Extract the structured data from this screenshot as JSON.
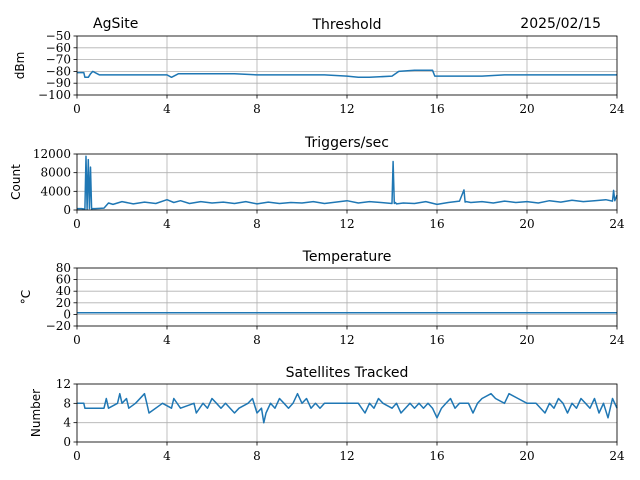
{
  "header": {
    "site": "AgSite",
    "date": "2025/02/15"
  },
  "chart_data": [
    {
      "type": "line",
      "title": "Threshold",
      "ylabel": "dBm",
      "xlabel": "",
      "xlim": [
        0,
        24
      ],
      "ylim": [
        -100,
        -50
      ],
      "xticks": [
        0,
        4,
        8,
        12,
        16,
        20,
        24
      ],
      "yticks": [
        -100,
        -90,
        -80,
        -70,
        -60,
        -50
      ],
      "ytick_labels": [
        "−100",
        "−90",
        "−80",
        "−70",
        "−60",
        "−50"
      ],
      "grid": true,
      "series": [
        {
          "x": [
            0,
            0.3,
            0.35,
            0.5,
            0.6,
            0.7,
            0.8,
            1.0,
            2,
            3,
            4,
            4.2,
            4.5,
            5,
            6,
            7,
            8,
            9,
            10,
            11,
            12,
            12.5,
            13,
            14,
            14.3,
            15,
            15.8,
            15.9,
            16.5,
            17,
            18,
            19,
            20,
            21,
            22,
            23,
            24
          ],
          "y": [
            -81,
            -81,
            -85,
            -85,
            -82,
            -80,
            -81,
            -83,
            -83,
            -83,
            -83,
            -85,
            -82,
            -82,
            -82,
            -82,
            -83,
            -83,
            -83,
            -83,
            -84,
            -85,
            -85,
            -84,
            -80,
            -79,
            -79,
            -84,
            -84,
            -84,
            -84,
            -83,
            -83,
            -83,
            -83,
            -83,
            -83
          ]
        }
      ]
    },
    {
      "type": "line",
      "title": "Triggers/sec",
      "ylabel": "Count",
      "xlabel": "",
      "xlim": [
        0,
        24
      ],
      "ylim": [
        0,
        12000
      ],
      "xticks": [
        0,
        4,
        8,
        12,
        16,
        20,
        24
      ],
      "yticks": [
        0,
        4000,
        8000,
        12000
      ],
      "ytick_labels": [
        "0",
        "4000",
        "8000",
        "12000"
      ],
      "grid": true,
      "series": [
        {
          "x": [
            0,
            0.2,
            0.35,
            0.4,
            0.45,
            0.5,
            0.55,
            0.6,
            0.65,
            0.7,
            0.8,
            1.2,
            1.4,
            1.6,
            2,
            2.5,
            3,
            3.5,
            4,
            4.3,
            4.6,
            5,
            5.5,
            6,
            6.5,
            7,
            7.5,
            8,
            8.5,
            9,
            9.5,
            10,
            10.5,
            11,
            11.5,
            12,
            12.5,
            13,
            13.5,
            14,
            14.05,
            14.1,
            14.15,
            14.2,
            14.5,
            15,
            15.5,
            16,
            16.5,
            17,
            17.2,
            17.25,
            17.3,
            17.5,
            18,
            18.5,
            19,
            19.5,
            20,
            20.5,
            21,
            21.5,
            22,
            22.5,
            23,
            23.5,
            23.8,
            23.85,
            23.9,
            24
          ],
          "y": [
            300,
            300,
            200,
            11500,
            200,
            10800,
            300,
            9200,
            200,
            300,
            300,
            400,
            1500,
            1200,
            1800,
            1300,
            1700,
            1400,
            2200,
            1600,
            2000,
            1400,
            1800,
            1500,
            1700,
            1400,
            1800,
            1300,
            1700,
            1400,
            1600,
            1500,
            1800,
            1400,
            1700,
            2000,
            1500,
            1800,
            1600,
            1400,
            10400,
            1400,
            1600,
            1300,
            1500,
            1400,
            1800,
            1200,
            1600,
            1900,
            4300,
            1700,
            1800,
            1600,
            1800,
            1500,
            1900,
            1600,
            1800,
            1500,
            2000,
            1700,
            2100,
            1800,
            2000,
            2200,
            1900,
            4200,
            2000,
            3200
          ]
        }
      ]
    },
    {
      "type": "line",
      "title": "Temperature",
      "ylabel": "°C",
      "xlabel": "",
      "xlim": [
        0,
        24
      ],
      "ylim": [
        -20,
        80
      ],
      "xticks": [
        0,
        4,
        8,
        12,
        16,
        20,
        24
      ],
      "yticks": [
        -20,
        0,
        20,
        40,
        60,
        80
      ],
      "ytick_labels": [
        "−20",
        "0",
        "20",
        "40",
        "60",
        "80"
      ],
      "grid": true,
      "series": [
        {
          "x": [
            0,
            24
          ],
          "y": [
            3,
            3
          ]
        }
      ]
    },
    {
      "type": "line",
      "title": "Satellites Tracked",
      "ylabel": "Number",
      "xlabel": "",
      "xlim": [
        0,
        24
      ],
      "ylim": [
        0,
        12
      ],
      "xticks": [
        0,
        4,
        8,
        12,
        16,
        20,
        24
      ],
      "yticks": [
        0,
        4,
        8,
        12
      ],
      "ytick_labels": [
        "0",
        "4",
        "8",
        "12"
      ],
      "grid": true,
      "series": [
        {
          "x": [
            0,
            0.3,
            0.35,
            1.2,
            1.3,
            1.4,
            1.8,
            1.9,
            2.0,
            2.2,
            2.3,
            2.6,
            3.0,
            3.1,
            3.2,
            3.8,
            4.2,
            4.3,
            4.6,
            5.2,
            5.3,
            5.6,
            5.8,
            6.0,
            6.2,
            6.4,
            6.6,
            7.0,
            7.2,
            7.6,
            7.8,
            8.0,
            8.2,
            8.3,
            8.4,
            8.6,
            8.8,
            9.0,
            9.2,
            9.4,
            9.6,
            9.8,
            10.0,
            10.2,
            10.4,
            10.6,
            10.8,
            11.0,
            11.5,
            12.0,
            12.5,
            12.8,
            13.0,
            13.2,
            13.4,
            13.6,
            14.0,
            14.2,
            14.4,
            14.8,
            15.0,
            15.2,
            15.4,
            15.6,
            15.8,
            16.0,
            16.2,
            16.4,
            16.6,
            16.8,
            17.0,
            17.4,
            17.6,
            17.8,
            18.0,
            18.4,
            18.6,
            19.0,
            19.2,
            19.6,
            20.0,
            20.4,
            20.8,
            21.0,
            21.2,
            21.4,
            21.6,
            21.8,
            22.0,
            22.2,
            22.4,
            22.6,
            22.8,
            23.0,
            23.2,
            23.4,
            23.6,
            23.8,
            24
          ],
          "y": [
            8,
            8,
            7,
            7,
            9,
            7,
            8,
            10,
            8,
            9,
            7,
            8,
            10,
            8,
            6,
            8,
            7,
            9,
            7,
            8,
            6,
            8,
            7,
            9,
            8,
            7,
            8,
            6,
            7,
            8,
            9,
            6,
            7,
            4,
            6,
            8,
            7,
            9,
            8,
            7,
            8,
            10,
            8,
            9,
            7,
            8,
            7,
            8,
            8,
            8,
            8,
            6,
            8,
            7,
            9,
            8,
            7,
            8,
            6,
            8,
            7,
            8,
            7,
            8,
            7,
            5,
            7,
            8,
            9,
            7,
            8,
            8,
            6,
            8,
            9,
            10,
            9,
            8,
            10,
            9,
            8,
            8,
            6,
            8,
            7,
            9,
            8,
            6,
            8,
            7,
            9,
            8,
            7,
            9,
            6,
            8,
            5,
            9,
            7
          ]
        }
      ]
    }
  ],
  "colors": {
    "series": "#1f77b4",
    "grid": "#b0b0b0",
    "axis": "#000000"
  }
}
